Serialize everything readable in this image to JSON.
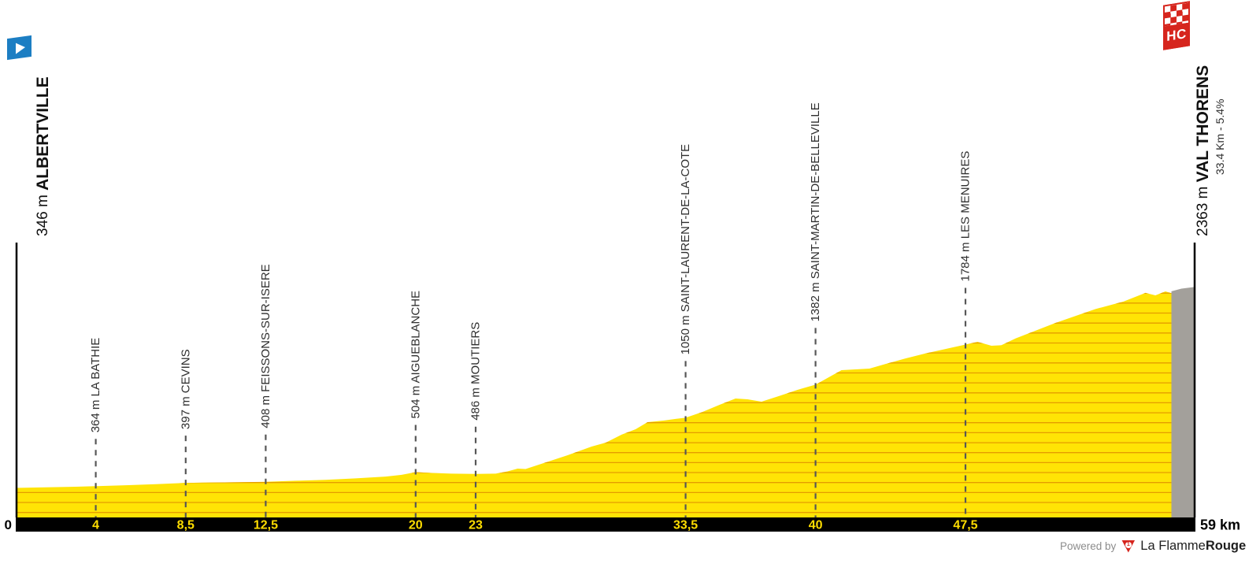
{
  "chart_data": {
    "type": "area",
    "km_total": 59,
    "x_unit": "km",
    "y_unit": "m",
    "profile": [
      [
        0,
        346
      ],
      [
        1.5,
        352
      ],
      [
        3,
        358
      ],
      [
        4,
        364
      ],
      [
        5.5,
        373
      ],
      [
        7,
        383
      ],
      [
        8.5,
        397
      ],
      [
        10,
        401
      ],
      [
        11.3,
        404
      ],
      [
        12.5,
        408
      ],
      [
        14,
        418
      ],
      [
        15.5,
        428
      ],
      [
        17,
        442
      ],
      [
        18.5,
        460
      ],
      [
        19.3,
        477
      ],
      [
        20,
        504
      ],
      [
        20.8,
        496
      ],
      [
        21.8,
        489
      ],
      [
        23,
        486
      ],
      [
        24,
        489
      ],
      [
        24.6,
        512
      ],
      [
        25.1,
        540
      ],
      [
        25.5,
        536
      ],
      [
        26.4,
        595
      ],
      [
        27.6,
        674
      ],
      [
        28.8,
        761
      ],
      [
        29.5,
        800
      ],
      [
        30.3,
        880
      ],
      [
        31,
        935
      ],
      [
        31.6,
        1006
      ],
      [
        32.4,
        1022
      ],
      [
        33,
        1038
      ],
      [
        33.5,
        1050
      ],
      [
        34.3,
        1105
      ],
      [
        35.2,
        1180
      ],
      [
        36,
        1243
      ],
      [
        36.6,
        1235
      ],
      [
        37.3,
        1211
      ],
      [
        38.2,
        1270
      ],
      [
        39.1,
        1330
      ],
      [
        40,
        1382
      ],
      [
        41.3,
        1527
      ],
      [
        42.7,
        1543
      ],
      [
        43.5,
        1590
      ],
      [
        44.5,
        1645
      ],
      [
        45.5,
        1695
      ],
      [
        46.5,
        1740
      ],
      [
        47.5,
        1784
      ],
      [
        48.1,
        1812
      ],
      [
        48.8,
        1772
      ],
      [
        49.3,
        1778
      ],
      [
        50,
        1845
      ],
      [
        52,
        2001
      ],
      [
        54,
        2140
      ],
      [
        55.4,
        2215
      ],
      [
        56.5,
        2302
      ],
      [
        57,
        2278
      ],
      [
        57.5,
        2317
      ],
      [
        57.8,
        2300
      ]
    ],
    "gray_final_section": [
      [
        57.8,
        2318
      ],
      [
        58.3,
        2345
      ],
      [
        59,
        2363
      ]
    ],
    "gridline_elevations_m": [
      100,
      200,
      300,
      400,
      500,
      600,
      700,
      800,
      900,
      1000,
      1100,
      1200,
      1300,
      1400,
      1500,
      1600,
      1700,
      1800,
      1900,
      2000,
      2100,
      2200,
      2300
    ],
    "start": {
      "name": "ALBERTVILLE",
      "elevation_label": "346 m",
      "elev_m": 346,
      "km": 0,
      "km_label": "0"
    },
    "finish": {
      "name": "VAL THORENS",
      "elevation_label": "2363 m",
      "elev_m": 2363,
      "km": 59,
      "km_label": "59 km",
      "climb_stats": "33.4 Km - 5.4%",
      "category": "HC"
    },
    "waypoints": [
      {
        "km": 4,
        "km_label": "4",
        "elevation_label": "364 m",
        "elev_m": 364,
        "name": "LA BATHIE"
      },
      {
        "km": 8.5,
        "km_label": "8,5",
        "elevation_label": "397 m",
        "elev_m": 397,
        "name": "CEVINS"
      },
      {
        "km": 12.5,
        "km_label": "12,5",
        "elevation_label": "408 m",
        "elev_m": 408,
        "name": "FEISSONS-SUR-ISERE"
      },
      {
        "km": 20,
        "km_label": "20",
        "elevation_label": "504 m",
        "elev_m": 504,
        "name": "AIGUEBLANCHE"
      },
      {
        "km": 23,
        "km_label": "23",
        "elevation_label": "486 m",
        "elev_m": 486,
        "name": "MOUTIERS"
      },
      {
        "km": 33.5,
        "km_label": "33,5",
        "elevation_label": "1050 m",
        "elev_m": 1050,
        "name": "SAINT-LAURENT-DE-LA-COTE"
      },
      {
        "km": 40,
        "km_label": "40",
        "elevation_label": "1382 m",
        "elev_m": 1382,
        "name": "SAINT-MARTIN-DE-BELLEVILLE"
      },
      {
        "km": 47.5,
        "km_label": "47,5",
        "elevation_label": "1784 m",
        "elev_m": 1784,
        "name": "LES MENUIRES"
      }
    ]
  },
  "badges": {
    "hc_label": "HC",
    "start_flag_icon": "play-flag-icon",
    "finish_flag_icon": "checkered-flag-icon"
  },
  "footer": {
    "powered_by": "Powered by",
    "logo_number": "1",
    "brand_prefix": "La Flamme",
    "brand_suffix": "Rouge"
  },
  "colors": {
    "profile_yellow": "#FFE405",
    "gridline_orange": "#E59C00",
    "final_km_gray": "#A3A09B",
    "dashed_line": "#575757",
    "label_text": "#2E2E2E",
    "axis_bar_black": "#000000",
    "axis_tick_yellow": "#FFDD00",
    "start_flag_blue": "#1C7EC3",
    "badge_red": "#D6251D",
    "footer_text_gray": "#8C8C8C",
    "brand_text_dark": "#1F1F1F"
  }
}
